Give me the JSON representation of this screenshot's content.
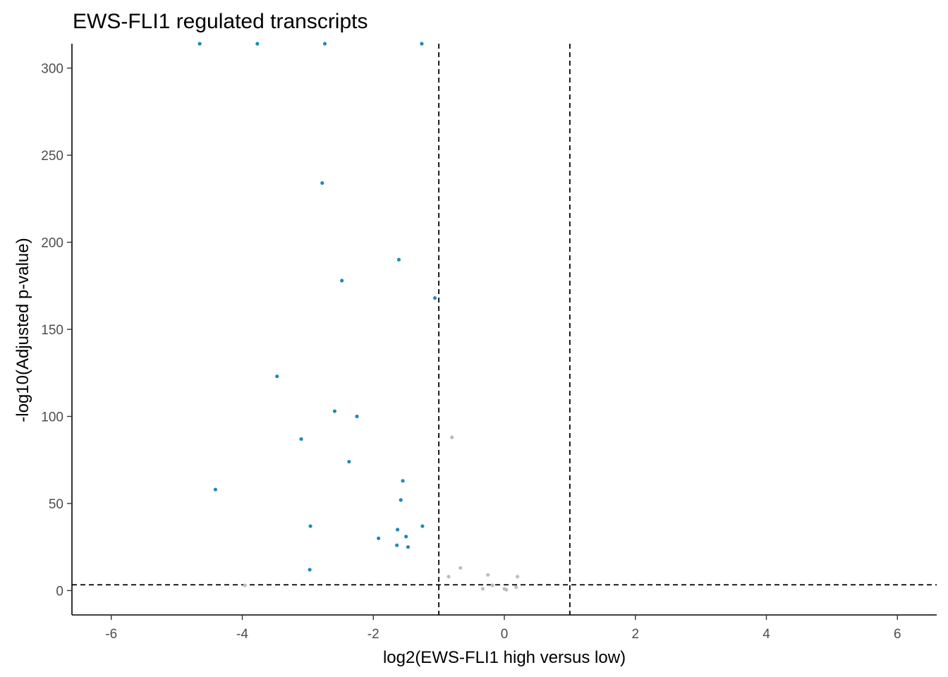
{
  "chart_data": {
    "type": "scatter",
    "title": "EWS-FLI1 regulated transcripts",
    "xlabel": "log2(EWS-FLI1 high versus low)",
    "ylabel": "-log10(Adjusted p-value)",
    "xlim": [
      -6.6,
      6.6
    ],
    "ylim": [
      -14,
      314
    ],
    "x_ticks": [
      -6,
      -4,
      -2,
      0,
      2,
      4,
      6
    ],
    "y_ticks": [
      0,
      50,
      100,
      150,
      200,
      250,
      300
    ],
    "grid": false,
    "legend": "none",
    "reference_lines": {
      "vertical": [
        -1,
        1
      ],
      "horizontal": [
        3.3
      ]
    },
    "colors": {
      "significant": "#1f8ab8",
      "not_significant": "#bdbdbd",
      "reference_line": "#000000"
    },
    "series": [
      {
        "points": [
          [
            -4.65,
            314
          ],
          [
            -3.77,
            314
          ],
          [
            -2.74,
            314
          ],
          [
            -1.26,
            314
          ],
          [
            -2.78,
            234
          ],
          [
            -1.61,
            190
          ],
          [
            -2.48,
            178
          ],
          [
            -1.06,
            168
          ],
          [
            -3.47,
            123
          ],
          [
            -2.59,
            103
          ],
          [
            -2.25,
            100
          ],
          [
            -3.1,
            87
          ],
          [
            -2.37,
            74
          ],
          [
            -4.41,
            58
          ],
          [
            -1.55,
            63
          ],
          [
            -1.58,
            52
          ],
          [
            -2.96,
            37
          ],
          [
            -1.25,
            37
          ],
          [
            -1.63,
            35
          ],
          [
            -1.92,
            30
          ],
          [
            -1.5,
            31
          ],
          [
            -1.64,
            26
          ],
          [
            -1.47,
            25
          ],
          [
            -2.97,
            12
          ]
        ]
      },
      {
        "points": [
          [
            -0.8,
            88
          ],
          [
            -0.67,
            13
          ],
          [
            -0.85,
            8
          ],
          [
            -0.25,
            9
          ],
          [
            0.2,
            8
          ],
          [
            -0.18,
            3
          ],
          [
            -0.33,
            1
          ],
          [
            0.0,
            1
          ],
          [
            0.03,
            0.5
          ],
          [
            0.18,
            2
          ],
          [
            -3.96,
            3
          ]
        ]
      }
    ]
  }
}
